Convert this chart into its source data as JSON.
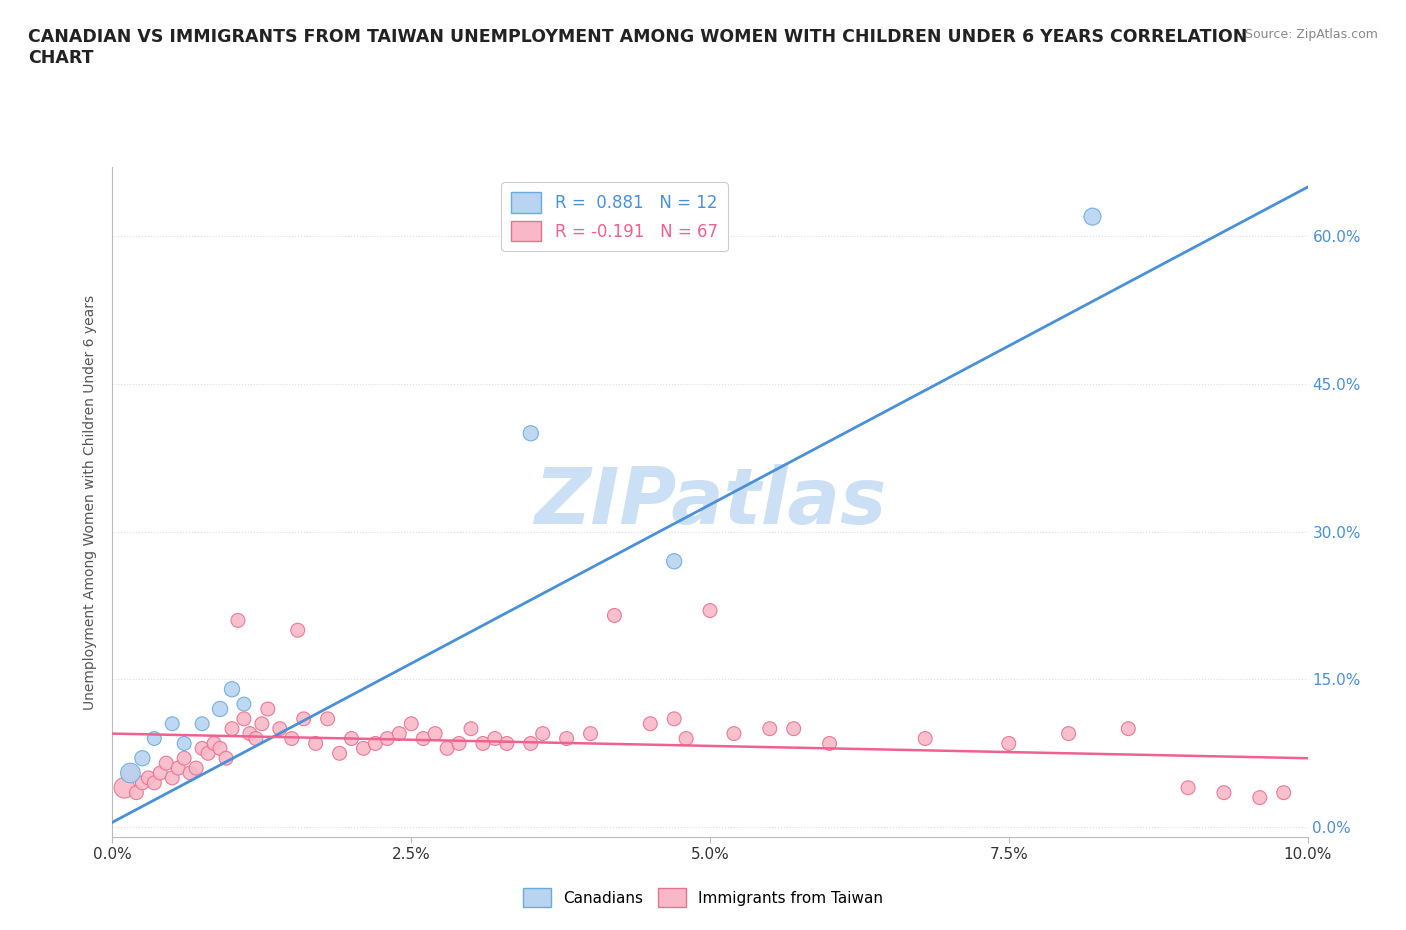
{
  "title": "CANADIAN VS IMMIGRANTS FROM TAIWAN UNEMPLOYMENT AMONG WOMEN WITH CHILDREN UNDER 6 YEARS CORRELATION\nCHART",
  "source": "Source: ZipAtlas.com",
  "ylabel": "Unemployment Among Women with Children Under 6 years",
  "xlim": [
    0.0,
    10.0
  ],
  "ylim": [
    -1.0,
    67.0
  ],
  "yticks": [
    0.0,
    15.0,
    30.0,
    45.0,
    60.0
  ],
  "xticks": [
    0.0,
    2.5,
    5.0,
    7.5,
    10.0
  ],
  "canadian_fill": "#b8d4f0",
  "canadian_edge": "#6aaae0",
  "taiwan_fill": "#f8b8c8",
  "taiwan_edge": "#e87090",
  "canadian_line_color": "#4a90d9",
  "taiwan_line_color": "#f06090",
  "watermark": "ZIPatlas",
  "watermark_color": "#cce0f5",
  "background_color": "#ffffff",
  "grid_color": "#dddddd",
  "canadians_x": [
    0.15,
    0.25,
    0.35,
    0.5,
    0.6,
    0.75,
    0.9,
    1.0,
    1.1,
    3.5,
    4.7,
    8.2
  ],
  "canadians_y": [
    5.5,
    7.0,
    9.0,
    10.5,
    8.5,
    10.5,
    12.0,
    14.0,
    12.5,
    40.0,
    27.0,
    62.0
  ],
  "canadians_size": [
    200,
    120,
    100,
    100,
    100,
    100,
    120,
    120,
    100,
    120,
    120,
    150
  ],
  "taiwan_x": [
    0.1,
    0.15,
    0.2,
    0.25,
    0.3,
    0.35,
    0.4,
    0.45,
    0.5,
    0.55,
    0.6,
    0.65,
    0.7,
    0.75,
    0.8,
    0.85,
    0.9,
    0.95,
    1.0,
    1.05,
    1.1,
    1.15,
    1.2,
    1.25,
    1.3,
    1.4,
    1.5,
    1.55,
    1.6,
    1.7,
    1.8,
    1.9,
    2.0,
    2.1,
    2.2,
    2.3,
    2.4,
    2.5,
    2.6,
    2.7,
    2.8,
    2.9,
    3.0,
    3.1,
    3.2,
    3.3,
    3.5,
    3.6,
    3.8,
    4.0,
    4.2,
    4.5,
    4.7,
    5.0,
    5.5,
    6.0,
    6.8,
    7.5,
    8.0,
    8.5,
    9.0,
    9.3,
    9.6,
    9.8,
    4.8,
    5.2,
    5.7
  ],
  "taiwan_y": [
    4.0,
    5.5,
    3.5,
    4.5,
    5.0,
    4.5,
    5.5,
    6.5,
    5.0,
    6.0,
    7.0,
    5.5,
    6.0,
    8.0,
    7.5,
    8.5,
    8.0,
    7.0,
    10.0,
    21.0,
    11.0,
    9.5,
    9.0,
    10.5,
    12.0,
    10.0,
    9.0,
    20.0,
    11.0,
    8.5,
    11.0,
    7.5,
    9.0,
    8.0,
    8.5,
    9.0,
    9.5,
    10.5,
    9.0,
    9.5,
    8.0,
    8.5,
    10.0,
    8.5,
    9.0,
    8.5,
    8.5,
    9.5,
    9.0,
    9.5,
    21.5,
    10.5,
    11.0,
    22.0,
    10.0,
    8.5,
    9.0,
    8.5,
    9.5,
    10.0,
    4.0,
    3.5,
    3.0,
    3.5,
    9.0,
    9.5,
    10.0
  ],
  "taiwan_size": [
    220,
    120,
    100,
    100,
    100,
    100,
    100,
    100,
    100,
    100,
    100,
    100,
    100,
    100,
    100,
    100,
    100,
    100,
    100,
    100,
    100,
    100,
    100,
    100,
    100,
    100,
    100,
    100,
    100,
    100,
    100,
    100,
    100,
    100,
    100,
    100,
    100,
    100,
    100,
    100,
    100,
    100,
    100,
    100,
    100,
    100,
    100,
    100,
    100,
    100,
    100,
    100,
    100,
    100,
    100,
    100,
    100,
    100,
    100,
    100,
    100,
    100,
    100,
    100,
    100,
    100,
    100
  ],
  "can_trend_x": [
    0.0,
    10.0
  ],
  "can_trend_y": [
    0.5,
    65.0
  ],
  "tw_trend_x": [
    0.0,
    10.0
  ],
  "tw_trend_y": [
    9.5,
    7.0
  ]
}
